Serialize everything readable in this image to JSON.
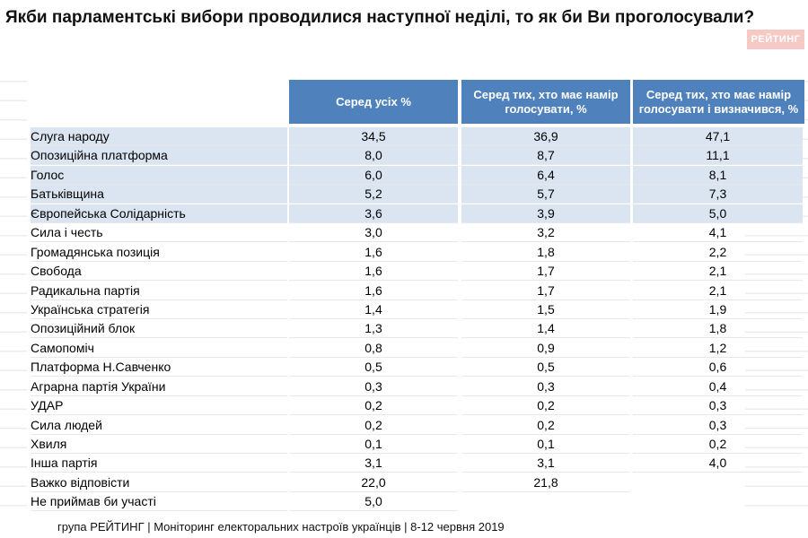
{
  "title": "Якби парламентські вибори проводилися наступної неділі, то як би Ви проголосували?",
  "logo": "РЕЙТИНГ",
  "columns": [
    "Серед усіх %",
    "Серед тих, хто має намір голосувати, %",
    "Серед тих, хто має намір голосувати і визначився, %"
  ],
  "rows": [
    {
      "name": "Слуга народу",
      "v1": "34,5",
      "v2": "36,9",
      "v3": "47,1"
    },
    {
      "name": "Опозиційна платформа",
      "v1": "8,0",
      "v2": "8,7",
      "v3": "11,1"
    },
    {
      "name": "Голос",
      "v1": "6,0",
      "v2": "6,4",
      "v3": "8,1"
    },
    {
      "name": "Батьківщина",
      "v1": "5,2",
      "v2": "5,7",
      "v3": "7,3"
    },
    {
      "name": "Європейська Солідарність",
      "v1": "3,6",
      "v2": "3,9",
      "v3": "5,0"
    },
    {
      "name": "Сила і честь",
      "v1": "3,0",
      "v2": "3,2",
      "v3": "4,1"
    },
    {
      "name": "Громадянська позиція",
      "v1": "1,6",
      "v2": "1,8",
      "v3": "2,2"
    },
    {
      "name": "Свобода",
      "v1": "1,6",
      "v2": "1,7",
      "v3": "2,1"
    },
    {
      "name": "Радикальна партія",
      "v1": "1,6",
      "v2": "1,7",
      "v3": "2,1"
    },
    {
      "name": "Українська стратегія",
      "v1": "1,4",
      "v2": "1,5",
      "v3": "1,9"
    },
    {
      "name": "Опозиційний блок",
      "v1": "1,3",
      "v2": "1,4",
      "v3": "1,8"
    },
    {
      "name": "Самопоміч",
      "v1": "0,8",
      "v2": "0,9",
      "v3": "1,2"
    },
    {
      "name": "Платформа Н.Савченко",
      "v1": "0,5",
      "v2": "0,5",
      "v3": "0,6"
    },
    {
      "name": "Аграрна партія України",
      "v1": "0,3",
      "v2": "0,3",
      "v3": "0,4"
    },
    {
      "name": "УДАР",
      "v1": "0,2",
      "v2": "0,2",
      "v3": "0,3"
    },
    {
      "name": "Сила людей",
      "v1": "0,2",
      "v2": "0,2",
      "v3": "0,3"
    },
    {
      "name": "Хвиля",
      "v1": "0,1",
      "v2": "0,1",
      "v3": "0,2"
    },
    {
      "name": "Інша партія",
      "v1": "3,1",
      "v2": "3,1",
      "v3": "4,0"
    },
    {
      "name": "Важко відповісти",
      "v1": "22,0",
      "v2": "21,8",
      "v3": ""
    },
    {
      "name": "Не приймав би участі",
      "v1": "5,0",
      "v2": "",
      "v3": ""
    }
  ],
  "footer": "група РЕЙТИНГ | Моніторинг електоральних настроїв українців  | 8-12 червня 2019"
}
